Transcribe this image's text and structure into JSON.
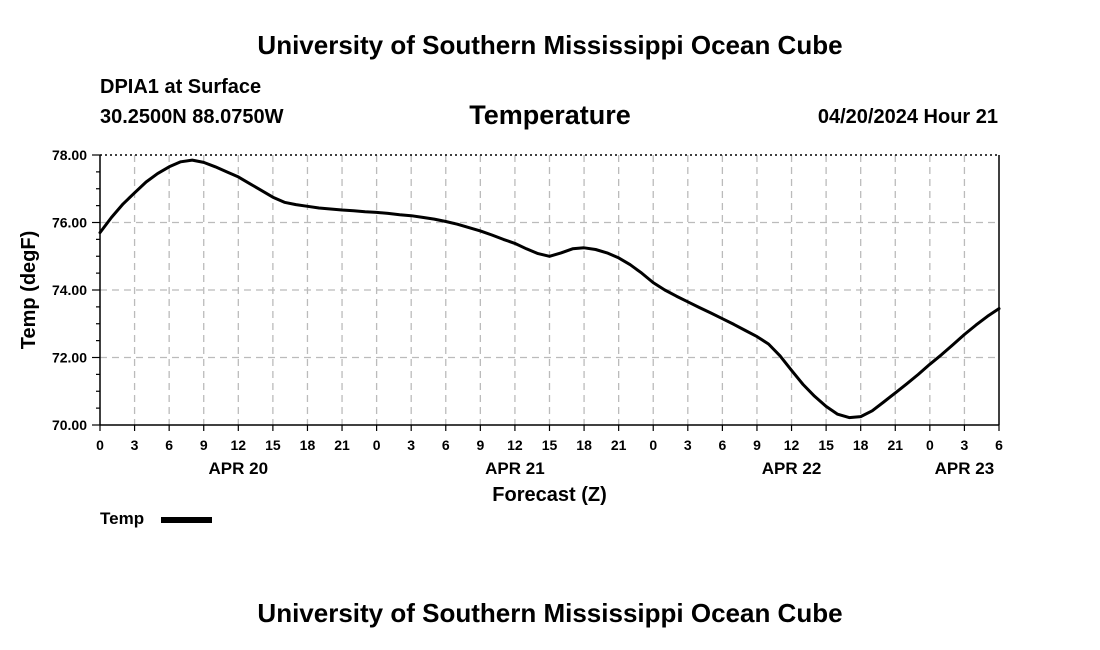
{
  "header": {
    "title": "University of Southern Mississippi Ocean Cube",
    "station": "DPIA1 at Surface",
    "coords": "30.2500N  88.0750W",
    "variable": "Temperature",
    "timestamp": "04/20/2024 Hour 21"
  },
  "footer": {
    "title": "University of Southern Mississippi Ocean Cube"
  },
  "legend": {
    "label": "Temp"
  },
  "chart_data": {
    "type": "line",
    "title": "Temperature",
    "xlabel": "Forecast (Z)",
    "ylabel": "Temp (degF)",
    "xlim": [
      0,
      78
    ],
    "ylim": [
      70,
      78
    ],
    "x_unit": "hours since 04/20/2024 00Z",
    "y_ticks": [
      70,
      72,
      74,
      76,
      78
    ],
    "y_tick_labels": [
      "70.00",
      "72.00",
      "74.00",
      "76.00",
      "78.00"
    ],
    "x_ticks": [
      0,
      3,
      6,
      9,
      12,
      15,
      18,
      21,
      24,
      27,
      30,
      33,
      36,
      39,
      42,
      45,
      48,
      51,
      54,
      57,
      60,
      63,
      66,
      69,
      72,
      75,
      78
    ],
    "x_tick_labels": [
      "0",
      "3",
      "6",
      "9",
      "12",
      "15",
      "18",
      "21",
      "0",
      "3",
      "6",
      "9",
      "12",
      "15",
      "18",
      "21",
      "0",
      "3",
      "6",
      "9",
      "12",
      "15",
      "18",
      "21",
      "0",
      "3",
      "6"
    ],
    "date_labels": [
      {
        "x": 12,
        "label": "APR 20"
      },
      {
        "x": 36,
        "label": "APR 21"
      },
      {
        "x": 60,
        "label": "APR 22"
      },
      {
        "x": 75,
        "label": "APR 23"
      }
    ],
    "grid": true,
    "legend_position": "bottom-left",
    "series": [
      {
        "name": "Temp",
        "color": "#000000",
        "x": [
          0,
          1,
          2,
          3,
          4,
          5,
          6,
          7,
          8,
          9,
          10,
          11,
          12,
          13,
          14,
          15,
          16,
          17,
          18,
          19,
          20,
          21,
          22,
          23,
          24,
          25,
          26,
          27,
          28,
          29,
          30,
          31,
          32,
          33,
          34,
          35,
          36,
          37,
          38,
          39,
          40,
          41,
          42,
          43,
          44,
          45,
          46,
          47,
          48,
          49,
          50,
          51,
          52,
          53,
          54,
          55,
          56,
          57,
          58,
          59,
          60,
          61,
          62,
          63,
          64,
          65,
          66,
          67,
          68,
          69,
          70,
          71,
          72,
          73,
          74,
          75,
          76,
          77,
          78
        ],
        "values": [
          75.7,
          76.15,
          76.55,
          76.88,
          77.2,
          77.45,
          77.65,
          77.8,
          77.85,
          77.78,
          77.65,
          77.5,
          77.35,
          77.15,
          76.95,
          76.75,
          76.6,
          76.53,
          76.48,
          76.43,
          76.4,
          76.37,
          76.35,
          76.32,
          76.3,
          76.27,
          76.23,
          76.2,
          76.15,
          76.1,
          76.03,
          75.95,
          75.85,
          75.75,
          75.63,
          75.5,
          75.38,
          75.22,
          75.08,
          75.0,
          75.1,
          75.22,
          75.25,
          75.2,
          75.1,
          74.95,
          74.75,
          74.5,
          74.22,
          74.0,
          73.82,
          73.65,
          73.48,
          73.32,
          73.15,
          72.98,
          72.8,
          72.62,
          72.4,
          72.05,
          71.62,
          71.2,
          70.85,
          70.55,
          70.32,
          70.22,
          70.25,
          70.42,
          70.68,
          70.95,
          71.22,
          71.5,
          71.8,
          72.08,
          72.38,
          72.68,
          72.96,
          73.22,
          73.45
        ]
      }
    ]
  }
}
